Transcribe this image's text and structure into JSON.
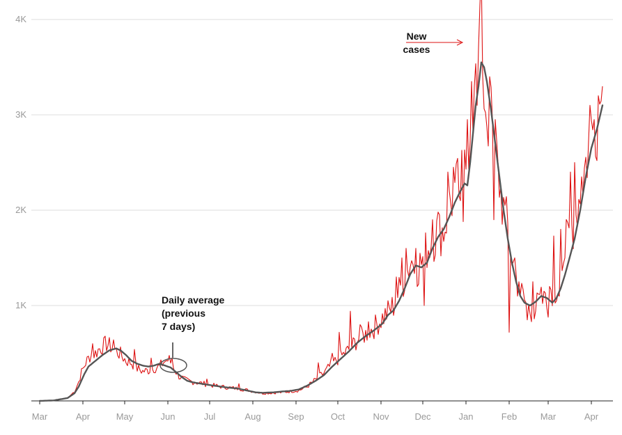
{
  "chart_data": {
    "type": "line",
    "title": "",
    "xlabel": "",
    "ylabel": "",
    "ylim": [
      0,
      4200
    ],
    "grid": true,
    "y_ticks": [
      {
        "value": 1000,
        "label": "1K"
      },
      {
        "value": 2000,
        "label": "2K"
      },
      {
        "value": 3000,
        "label": "3K"
      },
      {
        "value": 4000,
        "label": "4K"
      }
    ],
    "x_ticks": [
      {
        "day": 0,
        "label": "Mar"
      },
      {
        "day": 31,
        "label": "Apr"
      },
      {
        "day": 61,
        "label": "May"
      },
      {
        "day": 92,
        "label": "Jun"
      },
      {
        "day": 122,
        "label": "Jul"
      },
      {
        "day": 153,
        "label": "Aug"
      },
      {
        "day": 184,
        "label": "Sep"
      },
      {
        "day": 214,
        "label": "Oct"
      },
      {
        "day": 245,
        "label": "Nov"
      },
      {
        "day": 275,
        "label": "Dec"
      },
      {
        "day": 306,
        "label": "Jan"
      },
      {
        "day": 337,
        "label": "Feb"
      },
      {
        "day": 365,
        "label": "Mar"
      },
      {
        "day": 396,
        "label": "Apr"
      }
    ],
    "xlim_days": [
      0,
      412
    ],
    "series": [
      {
        "name": "New cases",
        "color": "#dd1111",
        "style": "daily",
        "anchors": [
          [
            0,
            0
          ],
          [
            10,
            5
          ],
          [
            20,
            30
          ],
          [
            25,
            100
          ],
          [
            28,
            200
          ],
          [
            30,
            300
          ],
          [
            33,
            400
          ],
          [
            36,
            470
          ],
          [
            40,
            500
          ],
          [
            43,
            550
          ],
          [
            48,
            600
          ],
          [
            52,
            560
          ],
          [
            55,
            520
          ],
          [
            58,
            490
          ],
          [
            62,
            420
          ],
          [
            66,
            400
          ],
          [
            70,
            340
          ],
          [
            74,
            310
          ],
          [
            78,
            320
          ],
          [
            82,
            340
          ],
          [
            86,
            360
          ],
          [
            90,
            420
          ],
          [
            93,
            430
          ],
          [
            96,
            350
          ],
          [
            100,
            260
          ],
          [
            104,
            220
          ],
          [
            110,
            200
          ],
          [
            118,
            180
          ],
          [
            125,
            160
          ],
          [
            135,
            140
          ],
          [
            142,
            130
          ],
          [
            150,
            110
          ],
          [
            155,
            95
          ],
          [
            160,
            80
          ],
          [
            168,
            85
          ],
          [
            175,
            90
          ],
          [
            180,
            100
          ],
          [
            186,
            110
          ],
          [
            192,
            150
          ],
          [
            198,
            220
          ],
          [
            204,
            290
          ],
          [
            210,
            390
          ],
          [
            216,
            460
          ],
          [
            222,
            540
          ],
          [
            228,
            640
          ],
          [
            234,
            700
          ],
          [
            240,
            770
          ],
          [
            246,
            870
          ],
          [
            250,
            930
          ],
          [
            254,
            1000
          ],
          [
            258,
            1150
          ],
          [
            262,
            1300
          ],
          [
            266,
            1450
          ],
          [
            270,
            1400
          ],
          [
            274,
            1450
          ],
          [
            278,
            1600
          ],
          [
            282,
            1700
          ],
          [
            286,
            1780
          ],
          [
            290,
            1800
          ],
          [
            294,
            2050
          ],
          [
            298,
            2200
          ],
          [
            302,
            2250
          ],
          [
            305,
            2400
          ],
          [
            307,
            2600
          ],
          [
            309,
            3000
          ],
          [
            311,
            3200
          ],
          [
            313,
            3300
          ],
          [
            315,
            3600
          ],
          [
            317,
            3900
          ],
          [
            319,
            3300
          ],
          [
            321,
            3050
          ],
          [
            324,
            2900
          ],
          [
            327,
            2700
          ],
          [
            330,
            2300
          ],
          [
            333,
            2000
          ],
          [
            336,
            1800
          ],
          [
            339,
            1500
          ],
          [
            342,
            1300
          ],
          [
            345,
            1150
          ],
          [
            348,
            1050
          ],
          [
            352,
            950
          ],
          [
            356,
            980
          ],
          [
            360,
            1050
          ],
          [
            364,
            1000
          ],
          [
            368,
            1050
          ],
          [
            371,
            1150
          ],
          [
            374,
            1350
          ],
          [
            377,
            1600
          ],
          [
            380,
            1750
          ],
          [
            384,
            1900
          ],
          [
            388,
            2200
          ],
          [
            392,
            2500
          ],
          [
            396,
            2800
          ],
          [
            400,
            3000
          ],
          [
            404,
            3250
          ]
        ],
        "spikes": [
          [
            38,
            600
          ],
          [
            53,
            640
          ],
          [
            68,
            540
          ],
          [
            80,
            450
          ],
          [
            89,
            400
          ],
          [
            95,
            450
          ],
          [
            120,
            230
          ],
          [
            143,
            180
          ],
          [
            200,
            400
          ],
          [
            210,
            500
          ],
          [
            215,
            720
          ],
          [
            223,
            940
          ],
          [
            230,
            800
          ],
          [
            236,
            830
          ],
          [
            256,
            1300
          ],
          [
            260,
            1500
          ],
          [
            263,
            1600
          ],
          [
            267,
            1470
          ],
          [
            270,
            1600
          ],
          [
            276,
            1000
          ],
          [
            282,
            1900
          ],
          [
            287,
            1950
          ],
          [
            293,
            2400
          ],
          [
            297,
            2450
          ],
          [
            302,
            2100
          ],
          [
            304,
            1880
          ],
          [
            307,
            2950
          ],
          [
            310,
            3350
          ],
          [
            312,
            3300
          ],
          [
            314,
            3100
          ],
          [
            316,
            4150
          ],
          [
            318,
            3400
          ],
          [
            323,
            3400
          ],
          [
            326,
            1900
          ],
          [
            329,
            2500
          ],
          [
            334,
            2050
          ],
          [
            337,
            720
          ],
          [
            341,
            1500
          ],
          [
            344,
            1250
          ],
          [
            350,
            850
          ],
          [
            354,
            1250
          ],
          [
            358,
            1120
          ],
          [
            362,
            1150
          ],
          [
            366,
            1200
          ],
          [
            369,
            1730
          ],
          [
            371,
            1050
          ],
          [
            374,
            1800
          ],
          [
            377,
            1500
          ],
          [
            381,
            2400
          ],
          [
            384,
            2500
          ],
          [
            389,
            2350
          ],
          [
            395,
            3100
          ],
          [
            398,
            2950
          ],
          [
            401,
            3200
          ],
          [
            404,
            3300
          ]
        ]
      },
      {
        "name": "Daily average (previous 7 days)",
        "color": "#555555",
        "style": "smooth",
        "anchors": [
          [
            0,
            0
          ],
          [
            10,
            5
          ],
          [
            20,
            30
          ],
          [
            25,
            80
          ],
          [
            28,
            150
          ],
          [
            32,
            280
          ],
          [
            35,
            360
          ],
          [
            40,
            420
          ],
          [
            45,
            480
          ],
          [
            50,
            530
          ],
          [
            55,
            550
          ],
          [
            58,
            530
          ],
          [
            62,
            480
          ],
          [
            66,
            420
          ],
          [
            70,
            390
          ],
          [
            74,
            370
          ],
          [
            78,
            360
          ],
          [
            82,
            370
          ],
          [
            86,
            390
          ],
          [
            90,
            370
          ],
          [
            94,
            350
          ],
          [
            98,
            300
          ],
          [
            102,
            250
          ],
          [
            106,
            210
          ],
          [
            110,
            195
          ],
          [
            118,
            175
          ],
          [
            125,
            160
          ],
          [
            135,
            140
          ],
          [
            142,
            130
          ],
          [
            150,
            105
          ],
          [
            155,
            90
          ],
          [
            160,
            85
          ],
          [
            168,
            90
          ],
          [
            175,
            100
          ],
          [
            180,
            105
          ],
          [
            186,
            120
          ],
          [
            192,
            160
          ],
          [
            198,
            210
          ],
          [
            204,
            270
          ],
          [
            210,
            360
          ],
          [
            216,
            440
          ],
          [
            222,
            520
          ],
          [
            228,
            610
          ],
          [
            234,
            680
          ],
          [
            240,
            740
          ],
          [
            246,
            810
          ],
          [
            250,
            900
          ],
          [
            254,
            950
          ],
          [
            258,
            1050
          ],
          [
            262,
            1180
          ],
          [
            266,
            1330
          ],
          [
            270,
            1420
          ],
          [
            274,
            1400
          ],
          [
            278,
            1450
          ],
          [
            282,
            1600
          ],
          [
            286,
            1720
          ],
          [
            290,
            1800
          ],
          [
            294,
            1930
          ],
          [
            298,
            2080
          ],
          [
            302,
            2200
          ],
          [
            305,
            2280
          ],
          [
            307,
            2260
          ],
          [
            309,
            2500
          ],
          [
            311,
            2800
          ],
          [
            313,
            3100
          ],
          [
            315,
            3300
          ],
          [
            317,
            3550
          ],
          [
            319,
            3500
          ],
          [
            321,
            3350
          ],
          [
            324,
            3050
          ],
          [
            327,
            2700
          ],
          [
            330,
            2350
          ],
          [
            333,
            2000
          ],
          [
            336,
            1700
          ],
          [
            339,
            1450
          ],
          [
            342,
            1250
          ],
          [
            345,
            1100
          ],
          [
            348,
            1030
          ],
          [
            352,
            1000
          ],
          [
            356,
            1040
          ],
          [
            360,
            1100
          ],
          [
            364,
            1080
          ],
          [
            368,
            1030
          ],
          [
            371,
            1080
          ],
          [
            374,
            1180
          ],
          [
            377,
            1320
          ],
          [
            380,
            1480
          ],
          [
            384,
            1700
          ],
          [
            388,
            2000
          ],
          [
            392,
            2350
          ],
          [
            396,
            2650
          ],
          [
            400,
            2850
          ],
          [
            404,
            3100
          ]
        ]
      }
    ],
    "annotations": [
      {
        "text": [
          "New",
          "cases"
        ],
        "points_to": "New cases"
      },
      {
        "text": [
          "Daily average",
          "(previous",
          "7 days)"
        ],
        "points_to": "Daily average (previous 7 days)"
      }
    ]
  }
}
